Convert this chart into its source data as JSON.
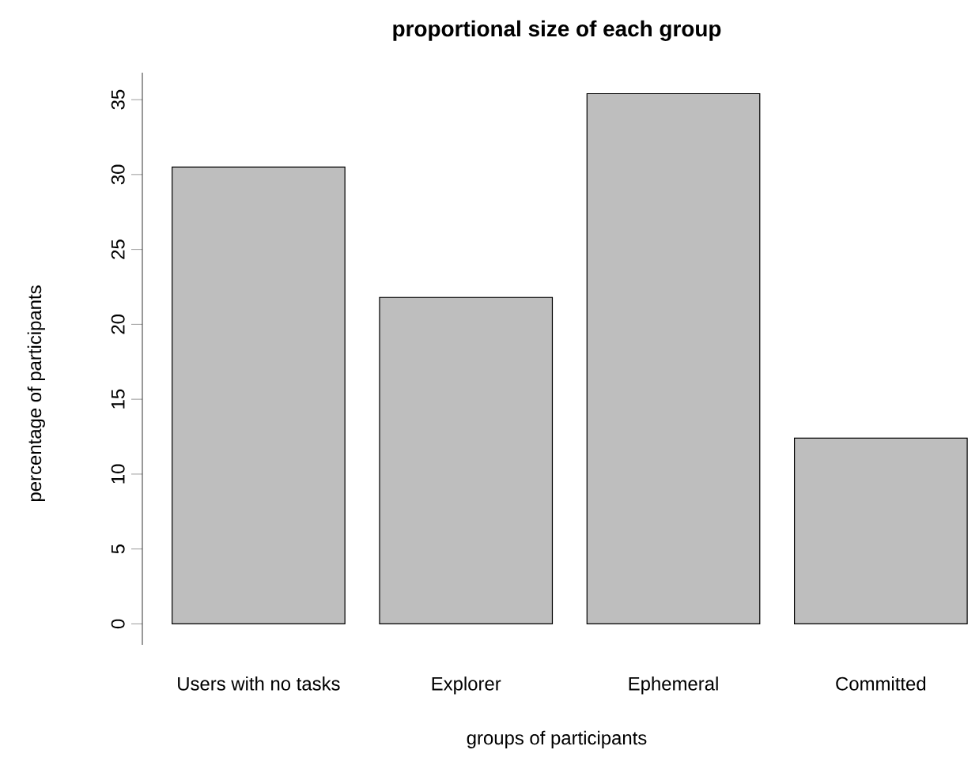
{
  "chart_data": {
    "type": "bar",
    "title": "proportional size of each group",
    "xlabel": "groups of participants",
    "ylabel": "percentage of participants",
    "categories": [
      "Users with no tasks",
      "Explorer",
      "Ephemeral",
      "Committed"
    ],
    "values": [
      30.5,
      21.8,
      35.4,
      12.4
    ],
    "color": "#bebebe",
    "ylim": [
      -1.4,
      36.8
    ],
    "yticks": [
      0,
      5,
      10,
      15,
      20,
      25,
      30,
      35
    ]
  }
}
